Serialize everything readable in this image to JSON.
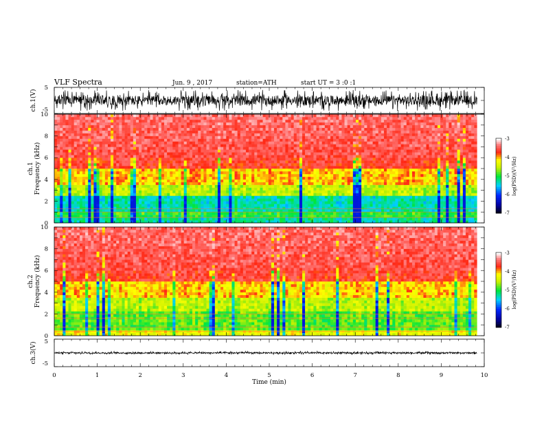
{
  "header": {
    "title": "VLF Spectra",
    "date": "Jun. 9 , 2017",
    "station": "station=ATH",
    "start": "start UT = 3 :0 :1"
  },
  "chart_data": [
    {
      "type": "line",
      "name": "ch1-waveform",
      "ylabel": "ch.1(V)",
      "yticks": [
        "5",
        "-5"
      ],
      "ylim": [
        -5,
        5
      ],
      "xlim": [
        0,
        10
      ],
      "amplitude": 4
    },
    {
      "type": "heatmap",
      "name": "ch1-spectrogram",
      "ylabel_line1": "ch.1",
      "ylabel_line2": "Frequency (kHz)",
      "yticks": [
        "0",
        "2",
        "4",
        "6",
        "8",
        "10"
      ],
      "ylim": [
        0,
        10
      ],
      "xlim": [
        0,
        10
      ],
      "data_end_min": 9.83,
      "colorbar": {
        "label": "log(PSD)(V²/Hz)",
        "ticks": [
          "-3",
          "-4",
          "-5",
          "-6",
          "-7"
        ],
        "range": [
          -7,
          -3
        ]
      }
    },
    {
      "type": "heatmap",
      "name": "ch2-spectrogram",
      "ylabel_line1": "ch.2",
      "ylabel_line2": "Frequency (kHz)",
      "yticks": [
        "0",
        "2",
        "4",
        "6",
        "8",
        "10"
      ],
      "ylim": [
        0,
        10
      ],
      "xlim": [
        0,
        10
      ],
      "data_end_min": 9.83,
      "colorbar": {
        "label": "log(PSD)(V²/Hz)",
        "ticks": [
          "-3",
          "-4",
          "-5",
          "-6",
          "-7"
        ],
        "range": [
          -7,
          -3
        ]
      }
    },
    {
      "type": "line",
      "name": "ch3-waveform",
      "ylabel": "ch.3(V)",
      "yticks": [
        "5",
        "-5"
      ],
      "ylim": [
        -5,
        5
      ],
      "xlim": [
        0,
        10
      ],
      "amplitude": 0.6
    }
  ],
  "xaxis": {
    "label": "Time (min)",
    "ticks": [
      "0",
      "1",
      "2",
      "3",
      "4",
      "5",
      "6",
      "7",
      "8",
      "9",
      "10"
    ],
    "range": [
      0,
      10
    ]
  },
  "colors": {
    "red": "#ff1a1a",
    "yellow": "#ffff00",
    "green": "#00e632",
    "cyan": "#00d8ff",
    "blue": "#0020ff",
    "black": "#000000"
  }
}
